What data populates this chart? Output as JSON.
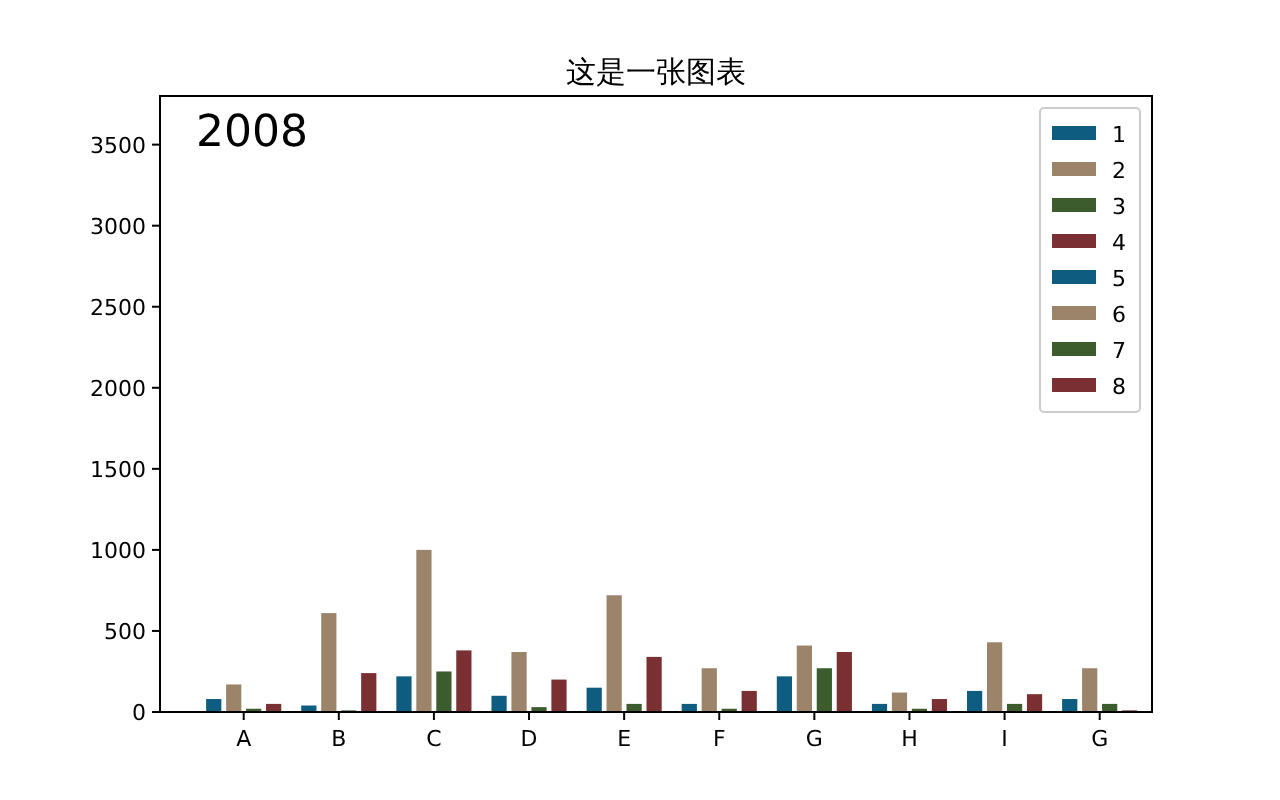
{
  "chart_data": {
    "type": "bar",
    "title": "这是一张图表",
    "annotations": [
      "2008"
    ],
    "categories": [
      "A",
      "B",
      "C",
      "D",
      "E",
      "F",
      "G",
      "H",
      "I",
      "G"
    ],
    "series": [
      {
        "name": "1",
        "color": "#0e5c80",
        "values": [
          80,
          40,
          220,
          100,
          150,
          50,
          220,
          50,
          130,
          80
        ]
      },
      {
        "name": "2",
        "color": "#9b8469",
        "values": [
          170,
          610,
          1000,
          370,
          720,
          270,
          410,
          120,
          430,
          270
        ]
      },
      {
        "name": "3",
        "color": "#3d5c2e",
        "values": [
          20,
          10,
          250,
          30,
          50,
          20,
          270,
          20,
          50,
          50
        ]
      },
      {
        "name": "4",
        "color": "#7a3033",
        "values": [
          50,
          240,
          380,
          200,
          340,
          130,
          370,
          80,
          110,
          10
        ]
      },
      {
        "name": "5",
        "color": "#0e5c80",
        "values": [
          null,
          null,
          null,
          null,
          null,
          null,
          null,
          null,
          null,
          null
        ]
      },
      {
        "name": "6",
        "color": "#9b8469",
        "values": [
          null,
          null,
          null,
          null,
          null,
          null,
          null,
          null,
          null,
          null
        ]
      },
      {
        "name": "7",
        "color": "#3d5c2e",
        "values": [
          null,
          null,
          null,
          null,
          null,
          null,
          null,
          null,
          null,
          null
        ]
      },
      {
        "name": "8",
        "color": "#7a3033",
        "values": [
          null,
          null,
          null,
          null,
          null,
          null,
          null,
          null,
          null,
          null
        ]
      }
    ],
    "ylim": [
      0,
      3800
    ],
    "yticks": [
      0,
      500,
      1000,
      1500,
      2000,
      2500,
      3000,
      3500
    ],
    "legend": "top right"
  }
}
